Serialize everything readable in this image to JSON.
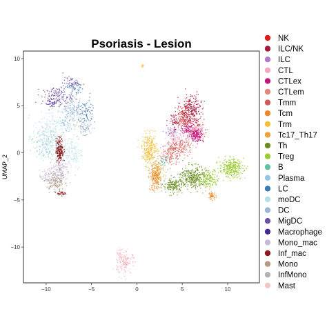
{
  "chart_data": {
    "type": "scatter",
    "title": "Psoriasis - Lesion",
    "xlabel": "",
    "ylabel": "UMAP_2",
    "xlim": [
      -12.5,
      13.5
    ],
    "ylim": [
      -13.8,
      10.8
    ],
    "xticks": [
      -10,
      -5,
      0,
      5,
      10
    ],
    "yticks": [
      10,
      5,
      0,
      -5,
      -10
    ],
    "grid": false,
    "legend_position": "right",
    "series": [
      {
        "name": "NK",
        "color": "#e31a1c",
        "clusters": [
          [
            5.2,
            4.0,
            0.9,
            0.9,
            60
          ],
          [
            6.5,
            2.5,
            0.8,
            0.8,
            40
          ]
        ]
      },
      {
        "name": "ILC/NK",
        "color": "#a6193c",
        "clusters": [
          [
            6.0,
            4.5,
            0.9,
            1.4,
            260
          ],
          [
            4.2,
            3.4,
            0.6,
            0.6,
            50
          ]
        ]
      },
      {
        "name": "ILC",
        "color": "#b07cc6",
        "clusters": [
          [
            3.8,
            2.2,
            0.7,
            0.5,
            50
          ]
        ]
      },
      {
        "name": "CTL",
        "color": "#f1a7c1",
        "clusters": [
          [
            6.4,
            2.4,
            0.9,
            0.7,
            140
          ],
          [
            4.2,
            1.2,
            0.8,
            0.8,
            90
          ],
          [
            -1.2,
            -11.5,
            0.8,
            0.8,
            70
          ]
        ]
      },
      {
        "name": "CTLex",
        "color": "#c2187a",
        "clusters": [
          [
            6.5,
            1.9,
            0.7,
            0.6,
            160
          ],
          [
            5.6,
            2.6,
            0.6,
            0.5,
            60
          ]
        ]
      },
      {
        "name": "CTLem",
        "color": "#e08a7e",
        "clusters": [
          [
            3.6,
            -0.4,
            0.8,
            1.0,
            120
          ],
          [
            5.2,
            0.6,
            0.8,
            0.8,
            100
          ]
        ]
      },
      {
        "name": "Tmm",
        "color": "#d15b5b",
        "clusters": [
          [
            4.2,
            0.4,
            0.8,
            0.8,
            90
          ],
          [
            5.0,
            3.3,
            0.7,
            0.7,
            60
          ]
        ]
      },
      {
        "name": "Tcm",
        "color": "#f0882b",
        "clusters": [
          [
            2.0,
            -2.8,
            0.5,
            1.0,
            140
          ],
          [
            8.3,
            -4.6,
            0.35,
            0.35,
            45
          ]
        ]
      },
      {
        "name": "Trm",
        "color": "#f5c03e",
        "clusters": [
          [
            1.4,
            0.4,
            0.7,
            1.3,
            260
          ],
          [
            0.7,
            9.2,
            0.1,
            0.15,
            10
          ]
        ]
      },
      {
        "name": "Tc17_Th17",
        "color": "#e7a43c",
        "clusters": [
          [
            2.2,
            -1.8,
            0.6,
            0.9,
            130
          ]
        ]
      },
      {
        "name": "Th",
        "color": "#6b8e23",
        "clusters": [
          [
            6.2,
            -2.6,
            1.2,
            1.0,
            320
          ],
          [
            4.0,
            -3.5,
            0.9,
            0.7,
            160
          ]
        ]
      },
      {
        "name": "Treg",
        "color": "#9acd32",
        "clusters": [
          [
            10.4,
            -1.6,
            1.1,
            0.8,
            300
          ],
          [
            8.0,
            -2.8,
            0.8,
            0.8,
            130
          ]
        ]
      },
      {
        "name": "B",
        "color": "#5fc4a1",
        "clusters": [
          [
            3.0,
            -0.8,
            0.5,
            0.5,
            25
          ]
        ]
      },
      {
        "name": "Plasma",
        "color": "#93c6e0",
        "clusters": [
          [
            -9.8,
            0.8,
            1.2,
            1.4,
            110
          ],
          [
            -7.8,
            3.2,
            1.0,
            1.0,
            60
          ]
        ]
      },
      {
        "name": "LC",
        "color": "#3a78b6",
        "clusters": [
          [
            -5.6,
            4.2,
            0.8,
            1.2,
            70
          ],
          [
            -6.8,
            6.8,
            0.9,
            0.6,
            40
          ]
        ]
      },
      {
        "name": "moDC",
        "color": "#b7e0e6",
        "clusters": [
          [
            -9.8,
            1.8,
            1.4,
            2.0,
            220
          ],
          [
            -7.2,
            0.0,
            1.0,
            1.5,
            120
          ]
        ]
      },
      {
        "name": "DC",
        "color": "#9fb6d3",
        "clusters": [
          [
            -7.0,
            4.6,
            1.1,
            1.2,
            150
          ],
          [
            -5.8,
            2.6,
            0.7,
            0.8,
            60
          ]
        ]
      },
      {
        "name": "MigDC",
        "color": "#6a51a3",
        "clusters": [
          [
            -8.8,
            6.0,
            1.4,
            0.8,
            140
          ],
          [
            -7.2,
            7.4,
            0.8,
            0.5,
            50
          ]
        ]
      },
      {
        "name": "Macrophage",
        "color": "#3f2a8f",
        "clusters": [
          [
            -9.4,
            5.2,
            0.5,
            0.4,
            30
          ]
        ]
      },
      {
        "name": "Mono_mac",
        "color": "#c9b8d6",
        "clusters": [
          [
            -8.6,
            -1.8,
            0.9,
            0.9,
            110
          ],
          [
            -10.0,
            -2.6,
            0.6,
            0.6,
            50
          ]
        ]
      },
      {
        "name": "Inf_mac",
        "color": "#8b1a1a",
        "clusters": [
          [
            -8.5,
            0.3,
            0.35,
            1.1,
            190
          ],
          [
            -8.4,
            -4.3,
            0.4,
            0.15,
            30
          ]
        ]
      },
      {
        "name": "Mono",
        "color": "#b59a86",
        "clusters": [
          [
            -9.0,
            -3.2,
            0.8,
            0.8,
            110
          ]
        ]
      },
      {
        "name": "InfMono",
        "color": "#b3b3b3",
        "clusters": [
          [
            -8.8,
            -2.6,
            0.7,
            0.7,
            60
          ]
        ]
      },
      {
        "name": "Mast",
        "color": "#f3c7c9",
        "clusters": [
          [
            -1.4,
            -11.8,
            0.7,
            1.0,
            90
          ],
          [
            -1.8,
            -10.8,
            0.4,
            0.5,
            30
          ]
        ]
      }
    ]
  }
}
